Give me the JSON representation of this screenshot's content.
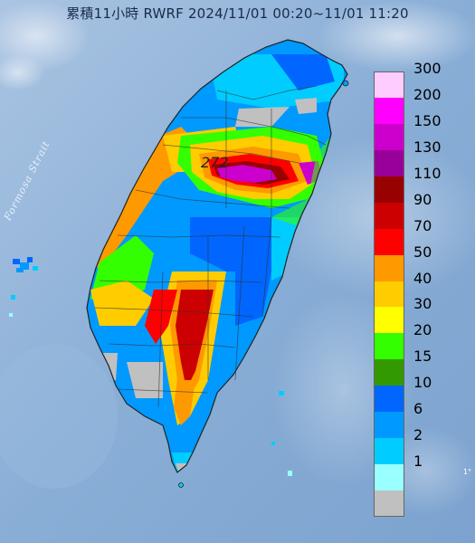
{
  "title": "累積11小時 RWRF 2024/11/01 00:20~11/01 11:20",
  "peak_label": "272",
  "strait_label": "Formosa Strait",
  "corner_mark": "1°",
  "legend": {
    "levels": [
      {
        "label": "300",
        "color": "#ffccff"
      },
      {
        "label": "200",
        "color": "#ff00ff"
      },
      {
        "label": "150",
        "color": "#cc00cc"
      },
      {
        "label": "130",
        "color": "#990099"
      },
      {
        "label": "110",
        "color": "#990000"
      },
      {
        "label": "90",
        "color": "#cc0000"
      },
      {
        "label": "70",
        "color": "#ff0000"
      },
      {
        "label": "50",
        "color": "#ff9900"
      },
      {
        "label": "40",
        "color": "#ffcc00"
      },
      {
        "label": "30",
        "color": "#ffff00"
      },
      {
        "label": "20",
        "color": "#33ff00"
      },
      {
        "label": "15",
        "color": "#339900"
      },
      {
        "label": "10",
        "color": "#0066ff"
      },
      {
        "label": "6",
        "color": "#0099ff"
      },
      {
        "label": "2",
        "color": "#00ccff"
      },
      {
        "label": "1",
        "color": "#99ffff"
      },
      {
        "label": "",
        "color": "#c0c0c0"
      }
    ]
  },
  "colors": {
    "sea": "#8fb3d6",
    "land_base": "#1e90ff"
  }
}
